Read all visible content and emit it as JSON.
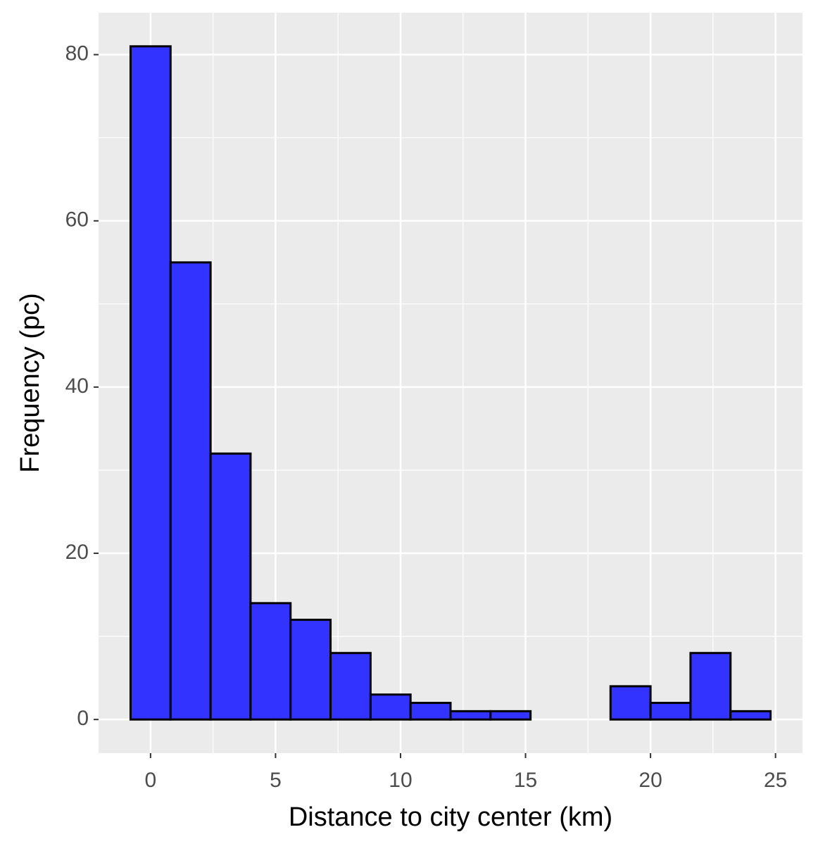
{
  "chart_data": {
    "type": "histogram",
    "x_label": "Distance to city center (km)",
    "y_label": "Frequency (pc)",
    "bins": [
      -0.8,
      0.8,
      2.4,
      4.0,
      5.6,
      7.2,
      8.8,
      10.4,
      12.0,
      13.6,
      15.2,
      16.8,
      18.4,
      20.0,
      21.6,
      23.2,
      24.8
    ],
    "values": [
      81,
      55,
      32,
      14,
      12,
      8,
      3,
      2,
      1,
      1,
      0,
      0,
      4,
      2,
      8,
      1
    ],
    "color": "#3333ff",
    "edge_color": "#000000",
    "xlim": [
      -2.08,
      26.08
    ],
    "xticks": [
      0,
      5,
      10,
      15,
      20,
      25
    ],
    "ylim": [
      -4.05,
      85.05
    ],
    "yticks": [
      0,
      20,
      40,
      60,
      80
    ],
    "grid": true
  }
}
